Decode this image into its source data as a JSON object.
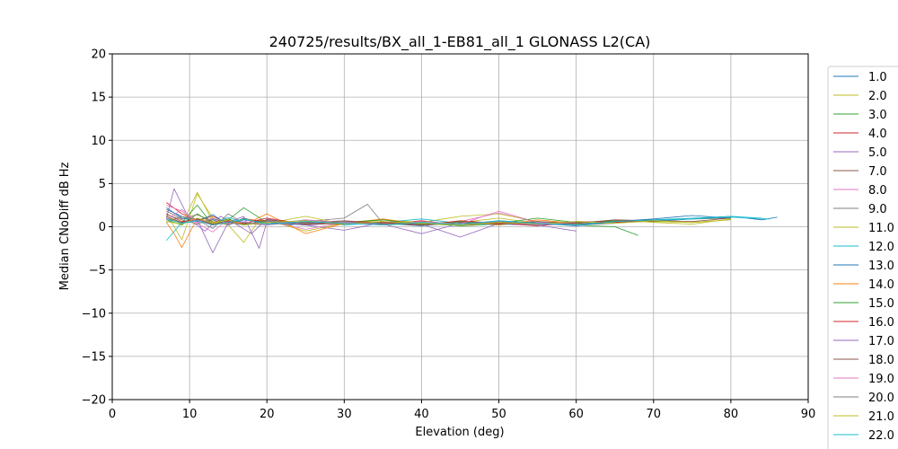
{
  "chart_data": {
    "type": "line",
    "title": "240725/results/BX_all_1-EB81_all_1 GLONASS L2(CA)",
    "xlabel": "Elevation (deg)",
    "ylabel": "Median CNoDiff dB Hz",
    "xlim": [
      0,
      90
    ],
    "ylim": [
      -20,
      20
    ],
    "xticks": [
      0,
      10,
      20,
      30,
      40,
      50,
      60,
      70,
      80,
      90
    ],
    "yticks": [
      -20,
      -15,
      -10,
      -5,
      0,
      5,
      10,
      15,
      20
    ],
    "grid": true,
    "legend_position": "right (outside plot, clipped at bottom)",
    "series": [
      {
        "name": "1.0",
        "color": "#1f77b4",
        "x": [
          7,
          9,
          11,
          13,
          15,
          17,
          19,
          21,
          23,
          25,
          30,
          35,
          40,
          45,
          50,
          55,
          60,
          65,
          70,
          75,
          80,
          84,
          86
        ],
        "y": [
          2.0,
          1.2,
          0.5,
          0.8,
          0.2,
          1.0,
          0.4,
          0.6,
          0.2,
          0.5,
          0.3,
          0.4,
          0.1,
          0.5,
          0.3,
          0.2,
          0.4,
          0.6,
          0.8,
          0.9,
          1.2,
          0.8,
          1.1
        ]
      },
      {
        "name": "2.0",
        "color": "#bcbd22",
        "x": [
          7,
          9,
          11,
          13,
          15,
          17,
          19,
          21,
          25,
          30,
          35,
          40,
          45,
          50,
          55,
          60,
          65,
          70,
          75,
          78
        ],
        "y": [
          1.5,
          -1.5,
          3.8,
          1.0,
          0.2,
          -1.8,
          0.8,
          0.5,
          -0.5,
          0.4,
          0.6,
          0.3,
          0.5,
          1.0,
          0.4,
          0.2,
          0.5,
          0.6,
          0.5,
          0.7
        ]
      },
      {
        "name": "3.0",
        "color": "#2ca02c",
        "x": [
          7,
          9,
          11,
          13,
          15,
          17,
          20,
          25,
          30,
          35,
          40,
          45,
          50,
          55,
          60,
          65,
          68
        ],
        "y": [
          1.0,
          0.5,
          2.5,
          0.2,
          0.8,
          2.2,
          0.5,
          0.3,
          0.6,
          0.2,
          0.4,
          0.1,
          0.3,
          0.5,
          0.2,
          0.0,
          -1.0
        ]
      },
      {
        "name": "4.0",
        "color": "#d62728",
        "x": [
          7,
          9,
          11,
          13,
          15,
          17,
          20,
          25,
          30,
          35,
          40,
          45,
          50,
          55,
          60,
          65,
          70
        ],
        "y": [
          2.8,
          1.5,
          0.8,
          1.2,
          0.4,
          0.9,
          0.6,
          0.2,
          0.5,
          0.3,
          0.7,
          0.2,
          0.4,
          0.1,
          0.5,
          0.6,
          0.8
        ]
      },
      {
        "name": "5.0",
        "color": "#9467bd",
        "x": [
          7,
          8,
          10,
          12,
          14,
          16,
          18,
          20,
          25,
          30,
          35,
          40,
          45,
          50,
          55,
          60
        ],
        "y": [
          1.0,
          4.4,
          0.8,
          -0.5,
          1.2,
          0.3,
          -0.8,
          0.9,
          0.2,
          -0.4,
          0.5,
          0.3,
          -1.2,
          0.4,
          0.2,
          -0.5
        ]
      },
      {
        "name": "7.0",
        "color": "#8c564b",
        "x": [
          7,
          9,
          11,
          13,
          15,
          17,
          20,
          25,
          30,
          35,
          40,
          45,
          50,
          55,
          60,
          65,
          70,
          75,
          80
        ],
        "y": [
          1.8,
          0.9,
          1.4,
          0.6,
          0.2,
          1.0,
          0.3,
          0.5,
          0.7,
          0.4,
          0.2,
          0.6,
          0.3,
          0.5,
          0.4,
          0.7,
          0.6,
          0.9,
          1.0
        ]
      },
      {
        "name": "8.0",
        "color": "#e377c2",
        "x": [
          7,
          9,
          11,
          13,
          15,
          17,
          20,
          25,
          30,
          35,
          40,
          45,
          50,
          55,
          60
        ],
        "y": [
          2.5,
          1.8,
          0.4,
          -0.6,
          0.9,
          0.2,
          0.7,
          -0.3,
          0.5,
          0.8,
          0.2,
          0.6,
          1.6,
          0.5,
          0.3
        ]
      },
      {
        "name": "9.0",
        "color": "#7f7f7f",
        "x": [
          7,
          9,
          11,
          13,
          15,
          17,
          20,
          25,
          30,
          33,
          35,
          40,
          45,
          50,
          55,
          60,
          65
        ],
        "y": [
          0.5,
          1.2,
          0.8,
          -0.2,
          1.5,
          0.4,
          0.2,
          0.6,
          1.0,
          2.6,
          0.4,
          0.2,
          0.5,
          0.3,
          0.6,
          0.2,
          0.4
        ]
      },
      {
        "name": "11.0",
        "color": "#bcbd22",
        "x": [
          7,
          9,
          11,
          13,
          15,
          17,
          20,
          25,
          30,
          35,
          40,
          45,
          50,
          55,
          60,
          65,
          70,
          75,
          80
        ],
        "y": [
          1.2,
          0.3,
          4.0,
          0.6,
          0.2,
          0.9,
          0.4,
          1.2,
          0.3,
          0.8,
          0.5,
          1.2,
          1.5,
          0.6,
          0.4,
          0.8,
          0.5,
          0.3,
          0.9
        ]
      },
      {
        "name": "12.0",
        "color": "#17becf",
        "x": [
          7,
          9,
          11,
          13,
          15,
          17,
          20,
          25,
          30,
          35,
          40,
          45,
          50,
          55,
          60,
          65,
          70,
          75,
          80,
          85
        ],
        "y": [
          -1.6,
          0.5,
          0.9,
          0.3,
          1.1,
          0.5,
          0.3,
          0.8,
          0.2,
          0.5,
          0.9,
          0.4,
          0.2,
          0.6,
          0.3,
          0.5,
          0.7,
          0.9,
          1.1,
          0.9
        ]
      },
      {
        "name": "13.0",
        "color": "#1f77b4",
        "x": [
          7,
          9,
          11,
          13,
          15,
          17,
          20,
          25,
          30,
          35,
          40,
          45,
          50,
          55,
          60,
          65,
          70,
          75,
          80
        ],
        "y": [
          2.2,
          1.0,
          0.6,
          1.4,
          0.2,
          0.8,
          0.5,
          0.2,
          0.6,
          0.3,
          0.5,
          0.2,
          0.7,
          0.4,
          0.1,
          0.6,
          0.9,
          1.3,
          1.0
        ]
      },
      {
        "name": "14.0",
        "color": "#ff7f0e",
        "x": [
          7,
          8,
          9,
          11,
          13,
          15,
          17,
          20,
          25,
          30,
          35,
          40,
          45,
          50,
          55,
          60
        ],
        "y": [
          0.5,
          -0.8,
          -2.4,
          1.0,
          0.5,
          0.8,
          0.2,
          1.5,
          -0.8,
          0.4,
          0.9,
          0.3,
          0.6,
          0.2,
          0.8,
          0.4
        ]
      },
      {
        "name": "15.0",
        "color": "#2ca02c",
        "x": [
          7,
          9,
          11,
          13,
          15,
          17,
          20,
          25,
          30,
          35,
          40,
          45,
          50,
          55,
          60,
          65
        ],
        "y": [
          0.8,
          0.2,
          1.5,
          0.4,
          0.9,
          0.3,
          0.6,
          0.2,
          0.5,
          0.8,
          0.3,
          0.6,
          0.4,
          1.0,
          0.5,
          0.7
        ]
      },
      {
        "name": "16.0",
        "color": "#d62728",
        "x": [
          7,
          9,
          11,
          13,
          15,
          17,
          20,
          25,
          30,
          35,
          40,
          45,
          50,
          55,
          60,
          65,
          70
        ],
        "y": [
          1.5,
          0.6,
          0.9,
          0.2,
          0.7,
          0.4,
          1.0,
          0.3,
          0.6,
          0.5,
          0.2,
          0.7,
          0.4,
          0.3,
          0.6,
          0.5,
          0.8
        ]
      },
      {
        "name": "17.0",
        "color": "#9467bd",
        "x": [
          7,
          9,
          11,
          13,
          15,
          17,
          19,
          20,
          25,
          30,
          35,
          40,
          45,
          50,
          55,
          60
        ],
        "y": [
          1.0,
          0.4,
          0.8,
          -3.0,
          0.5,
          1.2,
          -2.5,
          0.6,
          0.2,
          0.5,
          0.3,
          -0.8,
          0.4,
          0.6,
          0.2,
          0.5
        ]
      },
      {
        "name": "18.0",
        "color": "#8c564b",
        "x": [
          7,
          9,
          11,
          13,
          15,
          17,
          20,
          25,
          30,
          35,
          40,
          45,
          50,
          55,
          60,
          65,
          70,
          75,
          80
        ],
        "y": [
          1.2,
          0.5,
          0.9,
          0.3,
          0.6,
          0.2,
          0.8,
          0.4,
          0.3,
          0.6,
          0.2,
          0.5,
          0.3,
          0.6,
          0.4,
          0.8,
          0.7,
          0.6,
          1.0
        ]
      },
      {
        "name": "19.0",
        "color": "#e377c2",
        "x": [
          7,
          9,
          11,
          13,
          15,
          17,
          20,
          25,
          30,
          35,
          40,
          45,
          50,
          55,
          60
        ],
        "y": [
          0.8,
          2.0,
          0.5,
          1.0,
          0.3,
          0.6,
          0.2,
          0.8,
          0.5,
          0.2,
          0.6,
          0.3,
          1.8,
          0.5,
          0.3
        ]
      },
      {
        "name": "20.0",
        "color": "#7f7f7f",
        "x": [
          7,
          9,
          11,
          13,
          15,
          17,
          20,
          25,
          30,
          35,
          40,
          45,
          50,
          55,
          60,
          65
        ],
        "y": [
          1.4,
          0.8,
          0.3,
          0.9,
          0.5,
          0.2,
          0.7,
          0.4,
          0.6,
          0.3,
          0.5,
          0.2,
          0.6,
          0.4,
          0.3,
          0.5
        ]
      },
      {
        "name": "21.0",
        "color": "#bcbd22",
        "x": [
          7,
          9,
          11,
          13,
          15,
          17,
          20,
          25,
          30,
          35,
          40,
          45,
          50,
          55,
          60,
          65,
          70,
          75,
          80
        ],
        "y": [
          0.6,
          0.3,
          1.0,
          0.4,
          0.8,
          0.2,
          0.5,
          0.7,
          0.3,
          0.6,
          0.4,
          0.2,
          0.5,
          0.3,
          0.6,
          0.4,
          0.7,
          0.5,
          0.8
        ]
      },
      {
        "name": "22.0",
        "color": "#17becf",
        "x": [
          7,
          9,
          11,
          13,
          15,
          17,
          20,
          25,
          30,
          35,
          40,
          45,
          50,
          55,
          60,
          65,
          70,
          75,
          80,
          84
        ],
        "y": [
          0.9,
          0.4,
          0.7,
          0.2,
          0.5,
          0.9,
          0.3,
          0.6,
          0.4,
          0.2,
          0.5,
          0.3,
          0.7,
          0.4,
          0.2,
          0.6,
          0.8,
          1.0,
          1.2,
          1.0
        ]
      }
    ]
  }
}
